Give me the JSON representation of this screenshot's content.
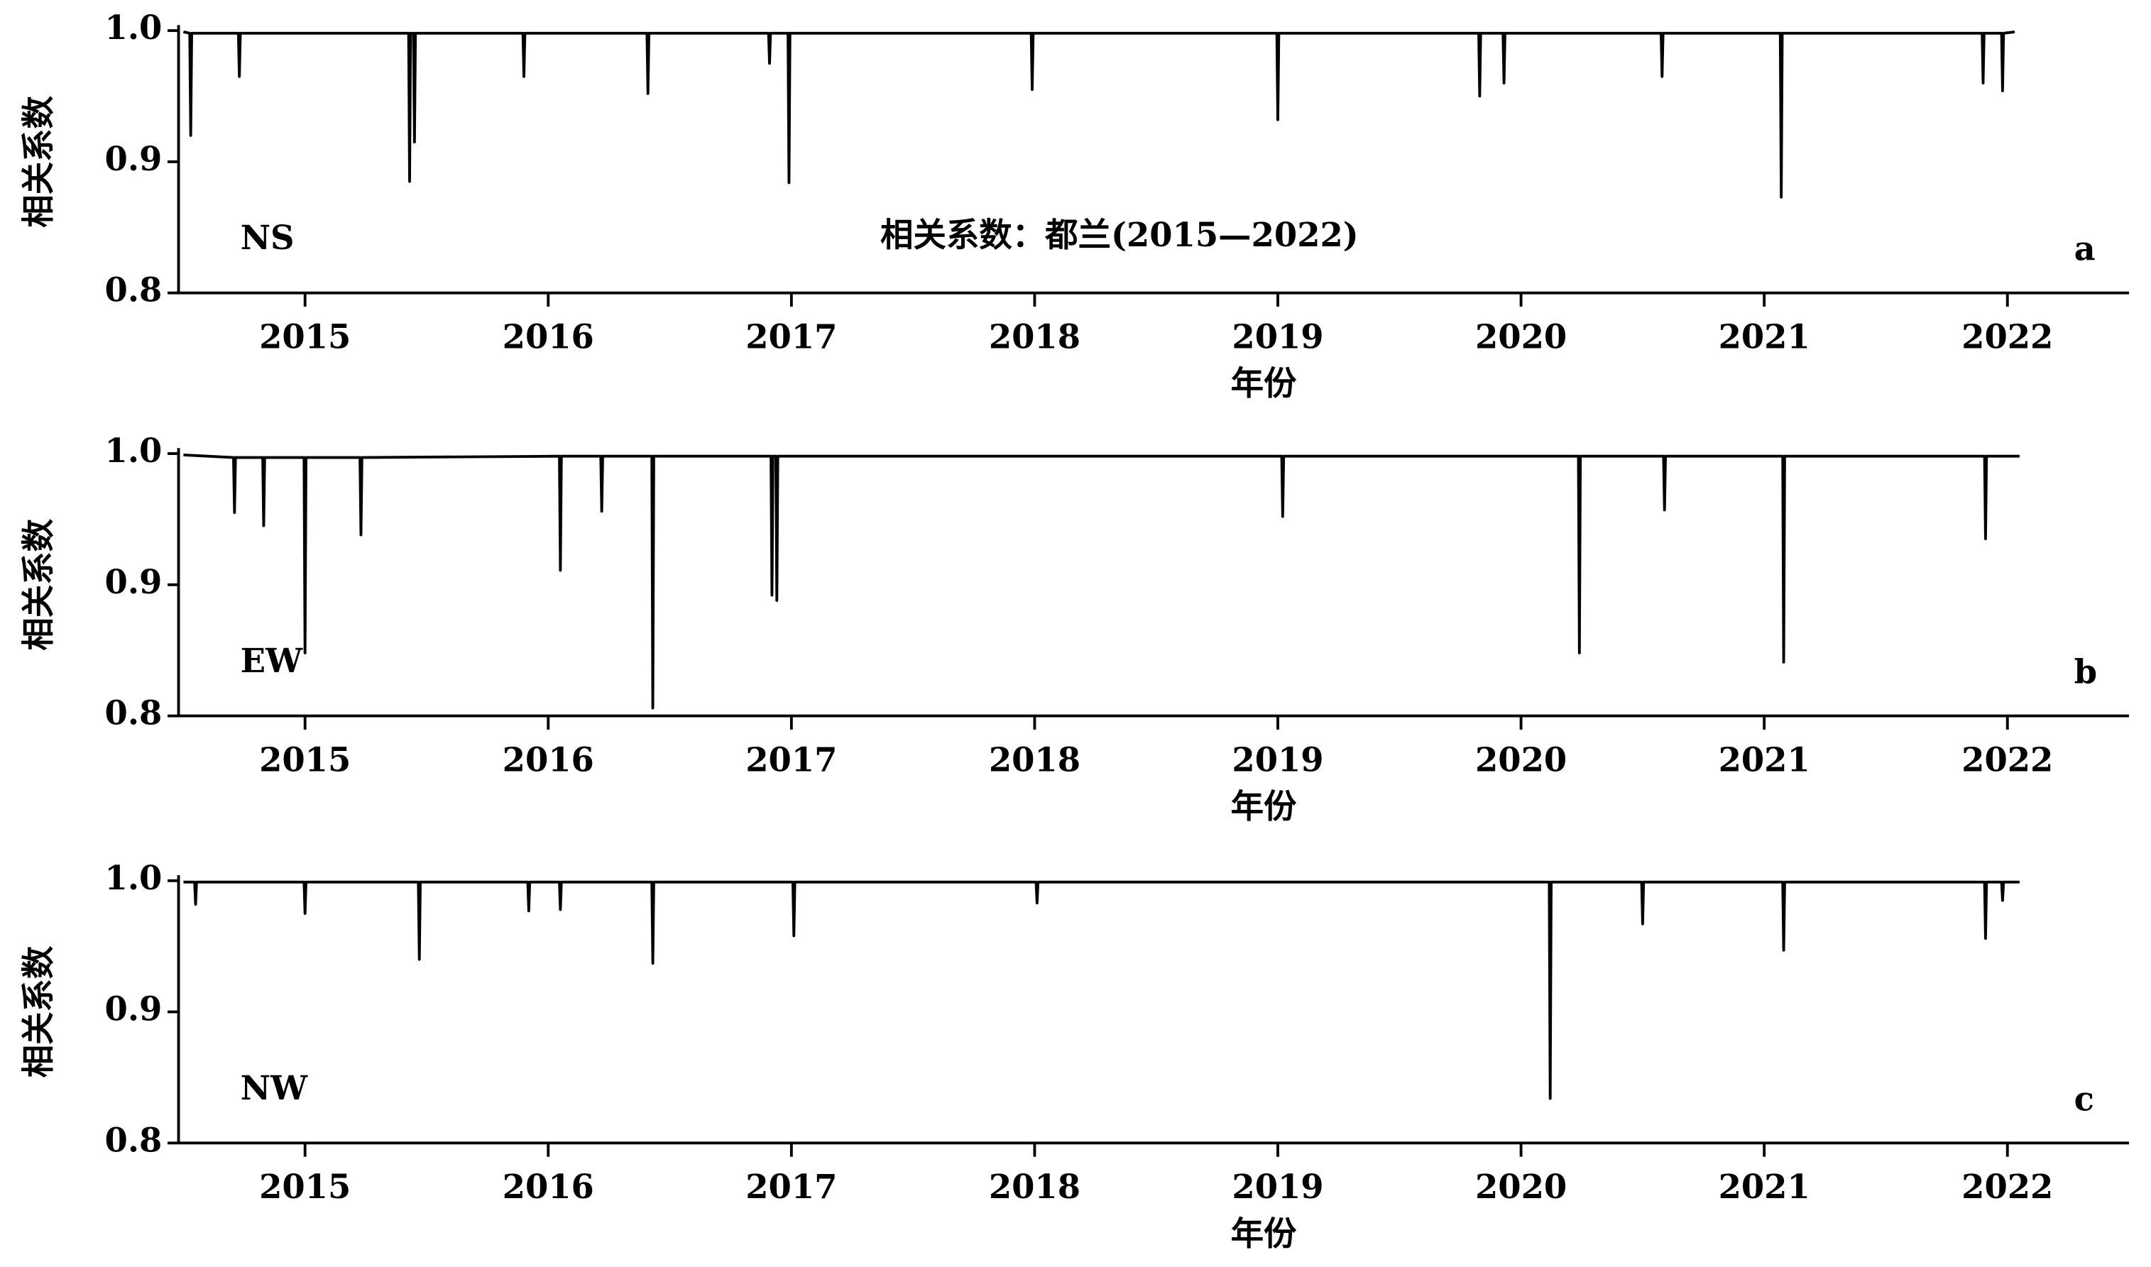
{
  "chart_data": [
    {
      "type": "line",
      "title": "相关系数：都兰(2015—2022)",
      "label": "NS",
      "panel": "a",
      "xlabel": "年份",
      "ylabel": "相关系数",
      "color": "#000000",
      "xlim": [
        2014.48,
        2022.5
      ],
      "xticks": [
        2015,
        2016,
        2017,
        2018,
        2019,
        2020,
        2021,
        2022
      ],
      "ylim": [
        0.8,
        1.0
      ],
      "yticks": [
        0.8,
        0.9,
        {
          "value": 1.0,
          "label": "1.0"
        }
      ],
      "x": [
        2014.5,
        2014.526,
        2014.53,
        2014.534,
        2014.726,
        2014.73,
        2014.734,
        2015.426,
        2015.43,
        2015.434,
        2015.446,
        2015.45,
        2015.454,
        2015.896,
        2015.9,
        2015.904,
        2016.406,
        2016.41,
        2016.414,
        2016.906,
        2016.91,
        2016.914,
        2016.986,
        2016.99,
        2016.994,
        2017.986,
        2017.99,
        2017.994,
        2018.996,
        2019.0,
        2019.004,
        2019.826,
        2019.83,
        2019.834,
        2019.926,
        2019.93,
        2019.934,
        2020.576,
        2020.58,
        2020.584,
        2021.066,
        2021.07,
        2021.074,
        2021.896,
        2021.9,
        2021.904,
        2021.976,
        2021.98,
        2021.984,
        2022.03
      ],
      "values": [
        0.999,
        0.998,
        0.92,
        0.998,
        0.998,
        0.965,
        0.998,
        0.998,
        0.885,
        0.998,
        0.998,
        0.915,
        0.998,
        0.998,
        0.965,
        0.998,
        0.998,
        0.952,
        0.998,
        0.998,
        0.975,
        0.998,
        0.998,
        0.884,
        0.998,
        0.998,
        0.955,
        0.998,
        0.998,
        0.932,
        0.998,
        0.998,
        0.95,
        0.998,
        0.998,
        0.96,
        0.998,
        0.998,
        0.965,
        0.998,
        0.998,
        0.873,
        0.998,
        0.998,
        0.96,
        0.998,
        0.998,
        0.954,
        0.998,
        0.999
      ]
    },
    {
      "type": "line",
      "label": "EW",
      "panel": "b",
      "xlabel": "年份",
      "ylabel": "相关系数",
      "color": "#000000",
      "xlim": [
        2014.48,
        2022.5
      ],
      "xticks": [
        2015,
        2016,
        2017,
        2018,
        2019,
        2020,
        2021,
        2022
      ],
      "ylim": [
        0.8,
        1.0
      ],
      "yticks": [
        0.8,
        0.9,
        {
          "value": 1.0,
          "label": "1.0"
        }
      ],
      "x": [
        2014.5,
        2014.706,
        2014.71,
        2014.714,
        2014.826,
        2014.83,
        2014.834,
        2014.996,
        2015.0,
        2015.004,
        2015.226,
        2015.23,
        2015.234,
        2016.046,
        2016.05,
        2016.054,
        2016.216,
        2016.22,
        2016.224,
        2016.426,
        2016.43,
        2016.434,
        2016.916,
        2016.92,
        2016.924,
        2016.936,
        2016.94,
        2016.944,
        2019.016,
        2019.02,
        2019.024,
        2020.236,
        2020.24,
        2020.244,
        2020.586,
        2020.59,
        2020.594,
        2021.076,
        2021.08,
        2021.084,
        2021.906,
        2021.91,
        2021.914,
        2022.05
      ],
      "values": [
        0.999,
        0.997,
        0.955,
        0.997,
        0.997,
        0.945,
        0.997,
        0.997,
        0.848,
        0.997,
        0.997,
        0.938,
        0.997,
        0.998,
        0.911,
        0.998,
        0.998,
        0.956,
        0.998,
        0.998,
        0.806,
        0.998,
        0.998,
        0.892,
        0.998,
        0.998,
        0.888,
        0.998,
        0.998,
        0.952,
        0.998,
        0.998,
        0.848,
        0.998,
        0.998,
        0.957,
        0.998,
        0.998,
        0.841,
        0.998,
        0.998,
        0.935,
        0.998,
        0.998
      ]
    },
    {
      "type": "line",
      "label": "NW",
      "panel": "c",
      "xlabel": "年份",
      "ylabel": "相关系数",
      "color": "#000000",
      "xlim": [
        2014.48,
        2022.5
      ],
      "xticks": [
        2015,
        2016,
        2017,
        2018,
        2019,
        2020,
        2021,
        2022
      ],
      "ylim": [
        0.8,
        1.0
      ],
      "yticks": [
        0.8,
        0.9,
        {
          "value": 1.0,
          "label": "1.0"
        }
      ],
      "x": [
        2014.5,
        2014.546,
        2014.55,
        2014.554,
        2014.996,
        2015.0,
        2015.004,
        2015.466,
        2015.47,
        2015.474,
        2015.916,
        2015.92,
        2015.924,
        2016.046,
        2016.05,
        2016.054,
        2016.426,
        2016.43,
        2016.434,
        2017.006,
        2017.01,
        2017.014,
        2018.006,
        2018.01,
        2018.014,
        2020.116,
        2020.12,
        2020.124,
        2020.496,
        2020.5,
        2020.504,
        2021.076,
        2021.08,
        2021.084,
        2021.906,
        2021.91,
        2021.914,
        2021.976,
        2021.98,
        2021.984,
        2022.05
      ],
      "values": [
        0.999,
        0.999,
        0.982,
        0.999,
        0.999,
        0.975,
        0.999,
        0.999,
        0.94,
        0.999,
        0.999,
        0.977,
        0.999,
        0.999,
        0.978,
        0.999,
        0.999,
        0.937,
        0.999,
        0.999,
        0.958,
        0.999,
        0.999,
        0.983,
        0.999,
        0.999,
        0.834,
        0.999,
        0.999,
        0.967,
        0.999,
        0.999,
        0.947,
        0.999,
        0.999,
        0.956,
        0.999,
        0.999,
        0.985,
        0.999,
        0.999
      ]
    }
  ]
}
